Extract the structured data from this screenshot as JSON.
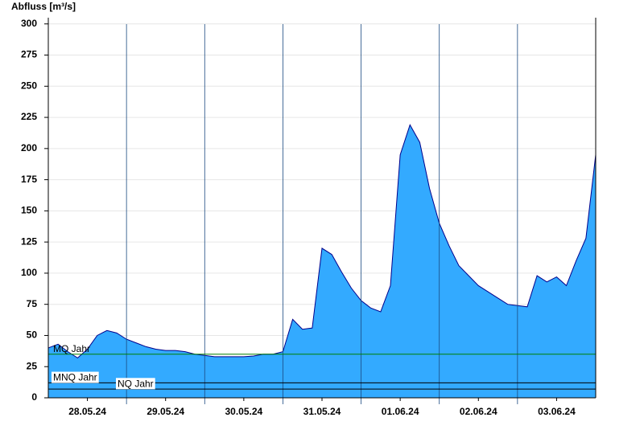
{
  "chart_data": {
    "type": "area",
    "ylabel": "Abfluss [m³/s]",
    "x": [
      0,
      3,
      6,
      9,
      12,
      15,
      18,
      21,
      24,
      27,
      30,
      33,
      36,
      39,
      42,
      45,
      48,
      51,
      54,
      57,
      60,
      63,
      66,
      69,
      72,
      75,
      78,
      81,
      84,
      87,
      90,
      93,
      96,
      99,
      102,
      105,
      108,
      111,
      114,
      117,
      120,
      123,
      126,
      129,
      132,
      135,
      138,
      141,
      144,
      147,
      150,
      153,
      156,
      159,
      162,
      165,
      168
    ],
    "series": [
      {
        "name": "Abfluss",
        "color": "#33aaff",
        "line_color": "#00008b",
        "values": [
          40,
          43,
          37,
          32,
          39,
          50,
          54,
          52,
          47,
          44,
          41,
          39,
          38,
          38,
          37,
          35,
          34,
          33,
          33,
          33,
          33,
          33.5,
          35,
          35,
          37,
          63,
          55,
          56,
          120,
          115,
          101,
          88,
          78,
          72,
          69,
          90,
          195,
          219,
          205,
          168,
          140,
          122,
          106,
          98,
          90,
          85,
          80,
          75,
          74,
          73,
          98,
          93,
          97,
          90,
          110,
          128,
          195
        ]
      }
    ],
    "xlim": [
      0,
      168
    ],
    "xticks": [
      {
        "value": 12,
        "label": "28.05.24"
      },
      {
        "value": 36,
        "label": "29.05.24"
      },
      {
        "value": 60,
        "label": "30.05.24"
      },
      {
        "value": 84,
        "label": "31.05.24"
      },
      {
        "value": 108,
        "label": "01.06.24"
      },
      {
        "value": 132,
        "label": "02.06.24"
      },
      {
        "value": 156,
        "label": "03.06.24"
      }
    ],
    "ylim": [
      0,
      305
    ],
    "yticks": [
      0,
      25,
      50,
      75,
      100,
      125,
      150,
      175,
      200,
      225,
      250,
      275,
      300
    ],
    "grid": true,
    "reference_lines": [
      {
        "label": "MQ Jahr",
        "value": 35,
        "color": "#008000"
      },
      {
        "label": "MNQ Jahr",
        "value": 12,
        "color": "#000000"
      },
      {
        "label": "NQ Jahr",
        "value": 7,
        "color": "#000000"
      }
    ]
  }
}
